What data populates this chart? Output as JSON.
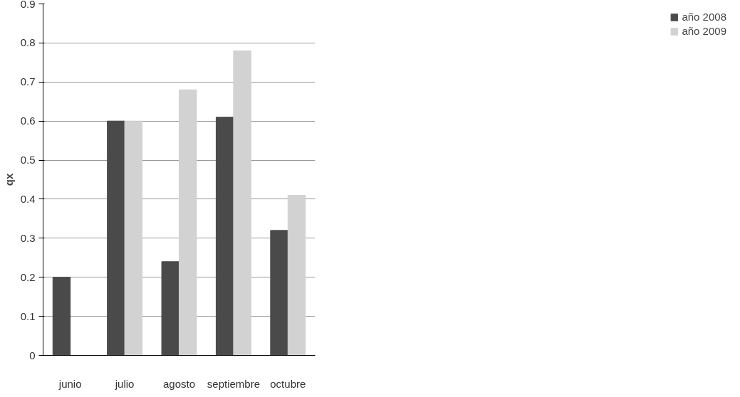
{
  "chart_data": {
    "type": "bar",
    "ylabel": "qx",
    "categories": [
      "junio",
      "julio",
      "agosto",
      "septiembre",
      "octubre"
    ],
    "series": [
      {
        "name": "año 2008",
        "color": "#4a4a4a",
        "values": [
          0.2,
          0.6,
          0.24,
          0.61,
          0.32
        ]
      },
      {
        "name": "año 2009",
        "color": "#d2d2d2",
        "values": [
          null,
          0.6,
          0.68,
          0.78,
          0.41
        ]
      }
    ],
    "ylim": [
      0,
      0.9
    ],
    "yticks": [
      0,
      0.1,
      0.2,
      0.3,
      0.4,
      0.5,
      0.6,
      0.7,
      0.8,
      0.9
    ],
    "grid": "y",
    "legend": "right"
  }
}
